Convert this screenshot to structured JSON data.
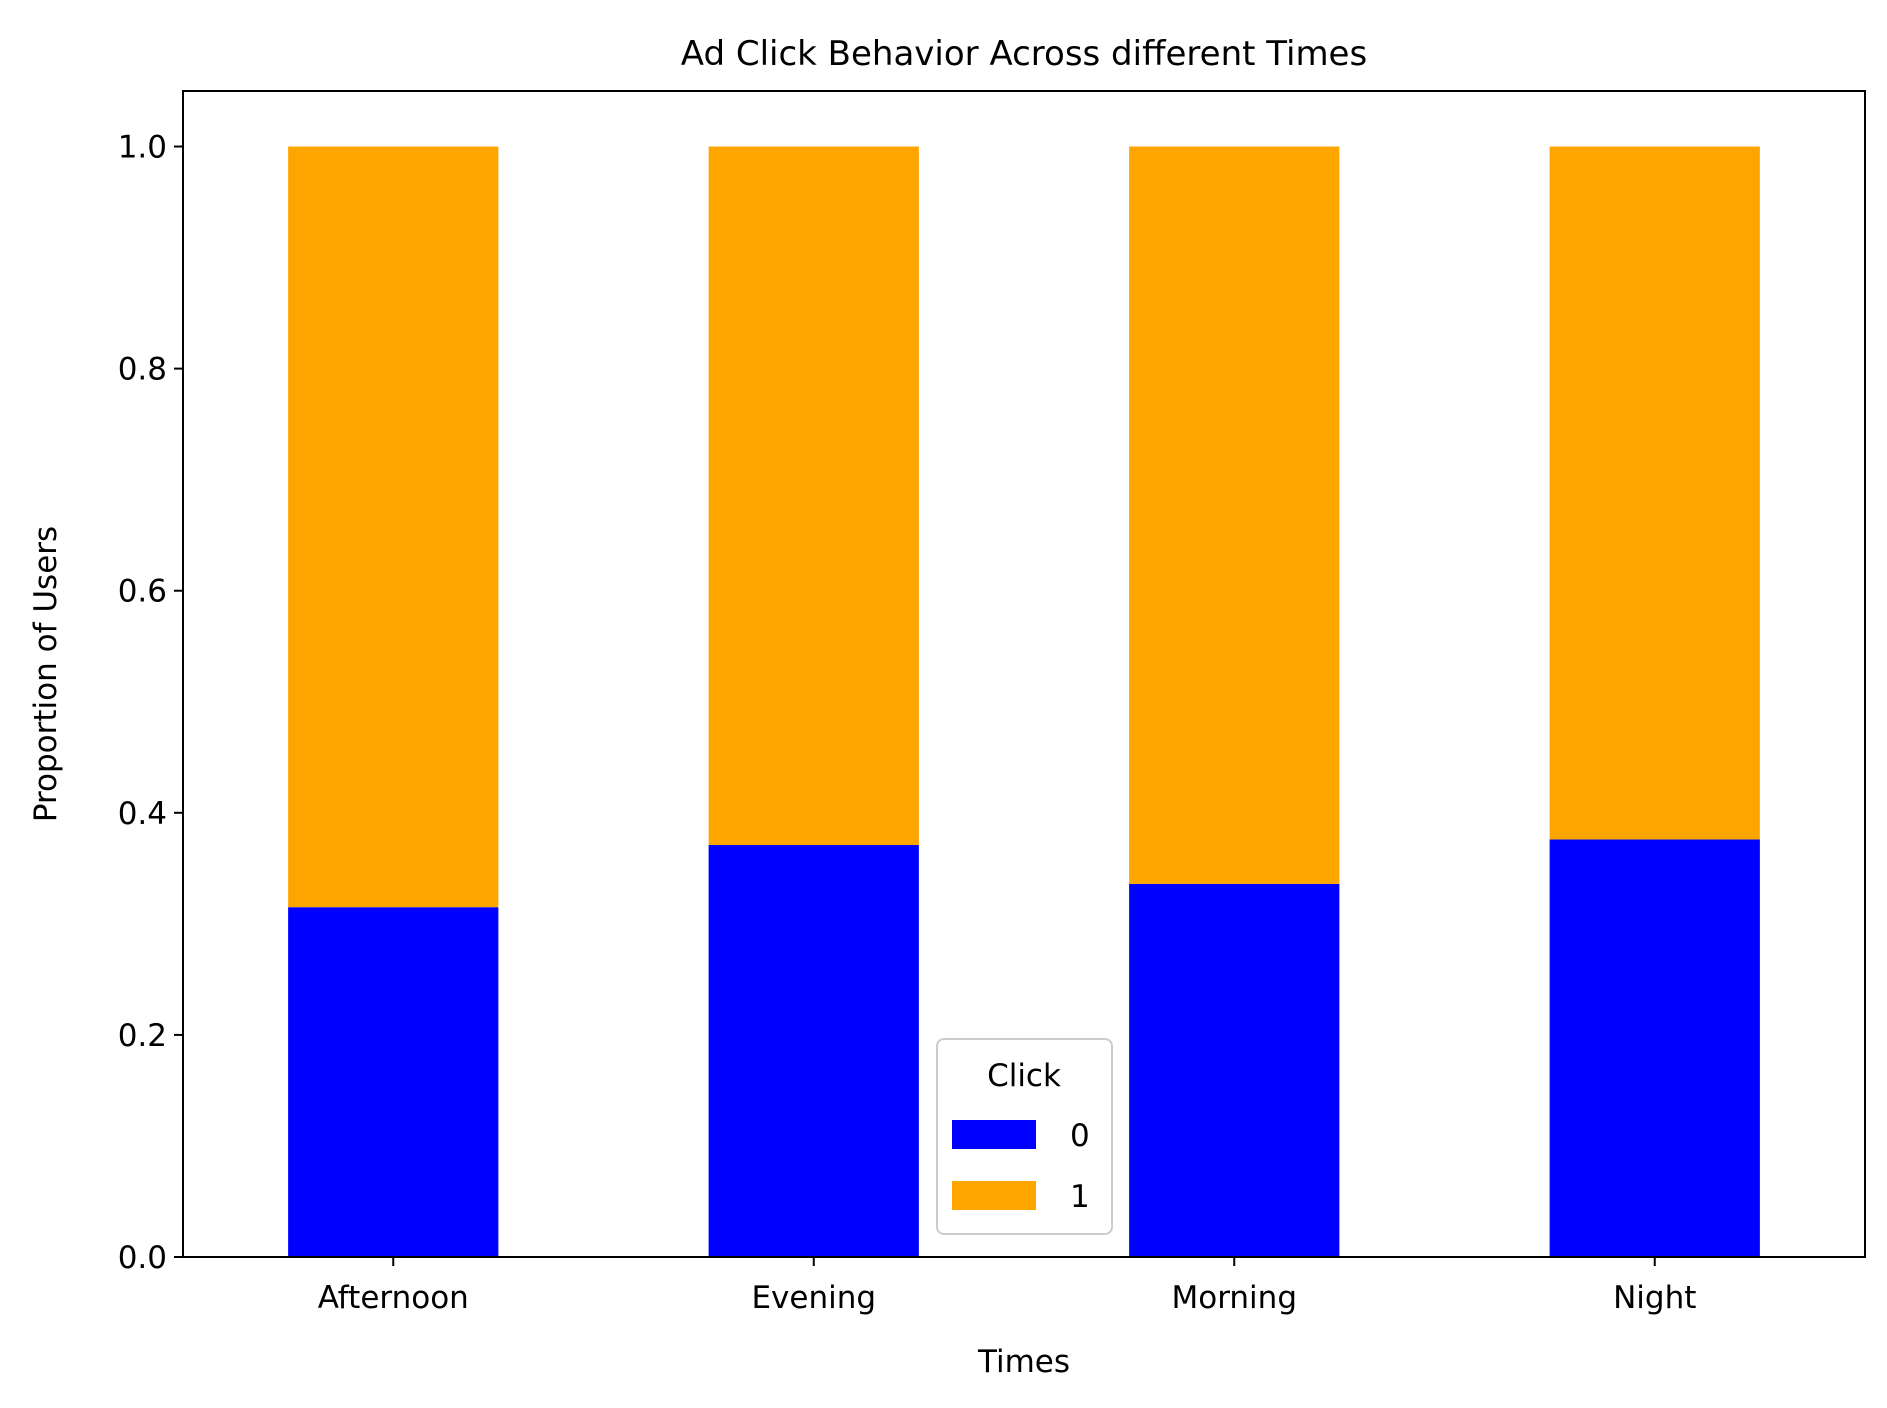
{
  "chart_data": {
    "type": "bar",
    "stacked": true,
    "title": "Ad Click Behavior Across different Times",
    "xlabel": "Times",
    "ylabel": "Proportion of Users",
    "categories": [
      "Afternoon",
      "Evening",
      "Morning",
      "Night"
    ],
    "series": [
      {
        "name": "0",
        "values": [
          0.315,
          0.371,
          0.336,
          0.376
        ],
        "color": "#0000ff"
      },
      {
        "name": "1",
        "values": [
          0.685,
          0.629,
          0.664,
          0.624
        ],
        "color": "#ffa500"
      }
    ],
    "ylim": [
      0,
      1.05
    ],
    "yticks": [
      0.0,
      0.2,
      0.4,
      0.6,
      0.8,
      1.0
    ],
    "ytick_labels": [
      "0.0",
      "0.2",
      "0.4",
      "0.6",
      "0.8",
      "1.0"
    ],
    "grid": false,
    "legend": {
      "title": "Click",
      "placement": "bottom-center"
    }
  }
}
